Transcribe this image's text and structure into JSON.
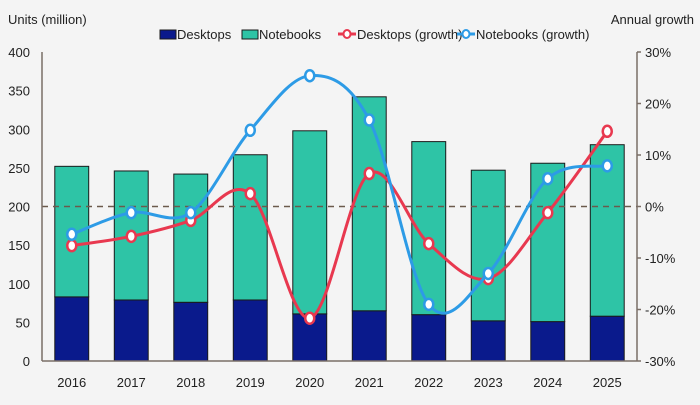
{
  "chart_data": {
    "type": "bar",
    "subtype": "stacked bar with dual-axis growth lines",
    "title": "",
    "categories": [
      "2016",
      "2017",
      "2018",
      "2019",
      "2020",
      "2021",
      "2022",
      "2023",
      "2024",
      "2025"
    ],
    "series": [
      {
        "name": "Desktops",
        "type": "bar",
        "axis": "left",
        "color": "#0a1a8c",
        "values": [
          83,
          79,
          76,
          79,
          61,
          65,
          60,
          52,
          51,
          58
        ]
      },
      {
        "name": "Notebooks",
        "type": "bar",
        "axis": "left",
        "color": "#2ec4a6",
        "values": [
          169,
          167,
          166,
          188,
          237,
          277,
          224,
          195,
          205,
          222
        ]
      },
      {
        "name": "Desktops (growth)",
        "type": "line",
        "axis": "right",
        "color": "#e8384f",
        "values": [
          -7.6,
          -5.8,
          -2.7,
          2.5,
          -21.7,
          6.4,
          -7.2,
          -14.0,
          -1.2,
          14.6
        ]
      },
      {
        "name": "Notebooks (growth)",
        "type": "line",
        "axis": "right",
        "color": "#2d9be6",
        "values": [
          -5.4,
          -1.2,
          -1.2,
          14.8,
          25.4,
          16.8,
          -19.0,
          -13.0,
          5.4,
          7.9
        ]
      }
    ],
    "ylabel": "Units (million)",
    "y2label": "Annual growth",
    "ylim": [
      0,
      400
    ],
    "y2lim": [
      -30,
      30
    ],
    "yticks": [
      "0",
      "50",
      "100",
      "150",
      "200",
      "250",
      "300",
      "350",
      "400"
    ],
    "y2ticks": [
      "-30%",
      "-20%",
      "-10%",
      "0%",
      "10%",
      "20%",
      "30%"
    ],
    "reference_line": {
      "axis": "right",
      "value": 0,
      "style": "dashed"
    },
    "legend": {
      "position": "top",
      "entries": [
        "Desktops",
        "Notebooks",
        "Desktops (growth)",
        "Notebooks (growth)"
      ]
    },
    "grid": false
  }
}
